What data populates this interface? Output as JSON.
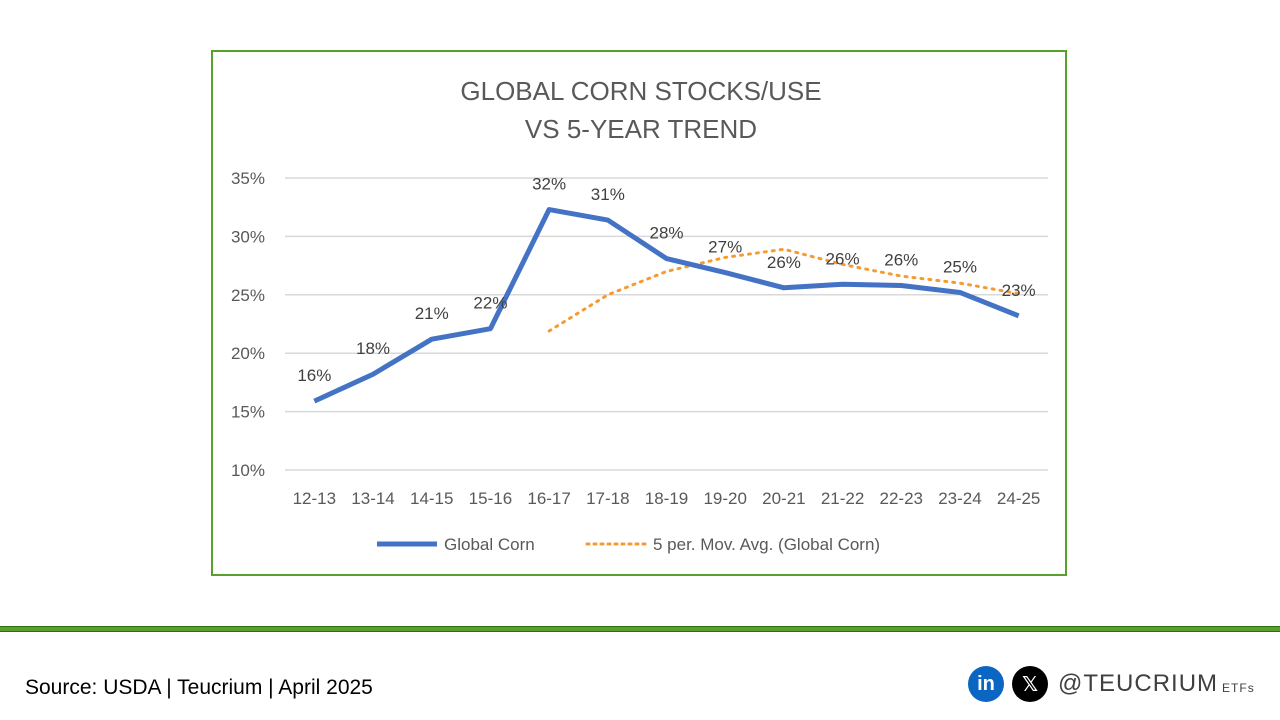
{
  "chart_data": {
    "type": "line",
    "title": [
      "GLOBAL CORN STOCKS/USE",
      "VS 5-YEAR TREND"
    ],
    "categories": [
      "12-13",
      "13-14",
      "14-15",
      "15-16",
      "16-17",
      "17-18",
      "18-19",
      "19-20",
      "20-21",
      "21-22",
      "22-23",
      "23-24",
      "24-25"
    ],
    "ylim": [
      0.1,
      0.35
    ],
    "yticks": [
      "35%",
      "30%",
      "25%",
      "20%",
      "15%",
      "10%"
    ],
    "ytick_values": [
      0.35,
      0.3,
      0.25,
      0.2,
      0.15,
      0.1
    ],
    "grid": true,
    "legend_position": "bottom",
    "series": [
      {
        "name": "Global Corn",
        "color": "#4472c4",
        "style": "solid",
        "values": [
          0.159,
          0.182,
          0.212,
          0.221,
          0.323,
          0.314,
          0.281,
          0.269,
          0.256,
          0.259,
          0.258,
          0.252,
          0.232
        ],
        "data_labels": [
          "16%",
          "18%",
          "21%",
          "22%",
          "32%",
          "31%",
          "28%",
          "27%",
          "26%",
          "26%",
          "26%",
          "25%",
          "23%"
        ]
      },
      {
        "name": "5 per. Mov. Avg. (Global Corn)",
        "color": "#f79a30",
        "style": "dotted",
        "values": [
          null,
          null,
          null,
          null,
          0.219,
          0.25,
          0.27,
          0.282,
          0.289,
          0.276,
          0.266,
          0.26,
          0.251
        ]
      }
    ]
  },
  "footer": {
    "source": "Source: USDA | Teucrium | April 2025",
    "handle": "@TEUCRIUM",
    "etfs": "ETFs",
    "linkedin_glyph": "in",
    "x_glyph": "𝕏"
  },
  "colors": {
    "frame": "#5aa02c",
    "grid": "#d9d9d9"
  },
  "icons": [
    "linkedin-icon",
    "x-icon"
  ]
}
